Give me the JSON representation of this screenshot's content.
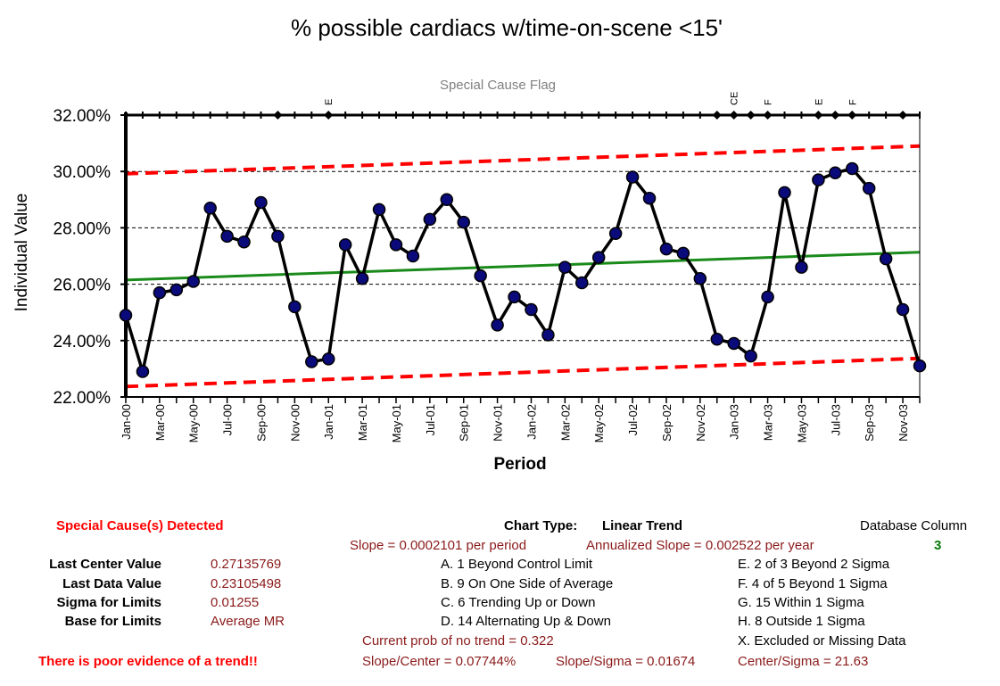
{
  "chart_data": {
    "type": "line",
    "title": "% possible cardiacs w/time-on-scene <15'",
    "xlabel": "Period",
    "ylabel": "Individual Value",
    "ylim": [
      0.22,
      0.32
    ],
    "yticks": [
      "22.00%",
      "24.00%",
      "26.00%",
      "28.00%",
      "30.00%",
      "32.00%"
    ],
    "ytick_values": [
      0.22,
      0.24,
      0.26,
      0.28,
      0.3,
      0.32
    ],
    "grid": "horizontal dashed",
    "x_tick_labels": [
      "Jan-00",
      "Mar-00",
      "May-00",
      "Jul-00",
      "Sep-00",
      "Nov-00",
      "Jan-01",
      "Mar-01",
      "May-01",
      "Jul-01",
      "Sep-01",
      "Nov-01",
      "Jan-02",
      "Mar-02",
      "May-02",
      "Jul-02",
      "Sep-02",
      "Nov-02",
      "Jan-03",
      "Mar-03",
      "May-03",
      "Jul-03",
      "Sep-03",
      "Nov-03"
    ],
    "x_tick_period_index": [
      0,
      2,
      4,
      6,
      8,
      10,
      12,
      14,
      16,
      18,
      20,
      22,
      24,
      26,
      28,
      30,
      32,
      34,
      36,
      38,
      40,
      42,
      44,
      46
    ],
    "series": [
      {
        "values": [
          0.249,
          0.229,
          0.257,
          0.258,
          0.261,
          0.287,
          0.277,
          0.275,
          0.289,
          0.277,
          0.252,
          0.2325,
          0.2335,
          0.274,
          0.262,
          0.2865,
          0.274,
          0.27,
          0.283,
          0.29,
          0.282,
          0.263,
          0.2455,
          0.2555,
          0.251,
          0.242,
          0.266,
          0.2605,
          0.2695,
          0.278,
          0.298,
          0.2905,
          0.2725,
          0.271,
          0.262,
          0.2405,
          0.239,
          0.2345,
          0.2555,
          0.2925,
          0.266,
          0.297,
          0.2995,
          0.301,
          0.294,
          0.269,
          0.251,
          0.23105498
        ],
        "color": "#000000",
        "marker_color": "#0a0a7a"
      }
    ],
    "center_line": {
      "start": 0.2615,
      "end": 0.27135769,
      "color": "#1a8a1a"
    },
    "upper_limit": {
      "start": 0.2992,
      "end": 0.309,
      "color": "#ff0000"
    },
    "lower_limit": {
      "start": 0.2237,
      "end": 0.2337,
      "color": "#ff0000"
    },
    "special_cause_flag": {
      "label": "Special Cause Flag",
      "markers": [
        9,
        12,
        35,
        36,
        37,
        38,
        41,
        42,
        43,
        46
      ],
      "letters": [
        {
          "index": 12,
          "text": "E"
        },
        {
          "index": 36,
          "text": "CE"
        },
        {
          "index": 38,
          "text": "F"
        },
        {
          "index": 41,
          "text": "E"
        },
        {
          "index": 43,
          "text": "F"
        }
      ]
    }
  },
  "panel": {
    "special_cause": "Special Cause(s) Detected",
    "chart_type_label": "Chart Type:",
    "chart_type_value": "Linear Trend",
    "database_column_label": "Database Column",
    "database_column_value": "3",
    "slope": "Slope = 0.0002101 per period",
    "annualized_slope": "Annualized Slope = 0.002522 per year",
    "stats": [
      {
        "label": "Last Center Value",
        "value": "0.27135769"
      },
      {
        "label": "Last Data Value",
        "value": "0.23105498"
      },
      {
        "label": "Sigma for Limits",
        "value": "0.01255"
      },
      {
        "label": "Base for Limits",
        "value": "Average MR"
      }
    ],
    "rules_left": [
      "A.  1 Beyond Control Limit",
      "B.  9 On One Side of Average",
      "C.  6 Trending Up or Down",
      "D.  14 Alternating  Up & Down"
    ],
    "rules_right": [
      "E.  2 of 3 Beyond 2 Sigma",
      "F.  4 of 5 Beyond 1 Sigma",
      "G.  15 Within 1 Sigma",
      "H.  8 Outside 1 Sigma",
      "X.  Excluded or Missing Data"
    ],
    "trend_prob": "Current prob of no trend = 0.322",
    "trend_note": "There is poor evidence of a trend!!",
    "slope_center": "Slope/Center = 0.07744%",
    "slope_sigma": "Slope/Sigma = 0.01674",
    "center_sigma": "Center/Sigma = 21.63"
  }
}
